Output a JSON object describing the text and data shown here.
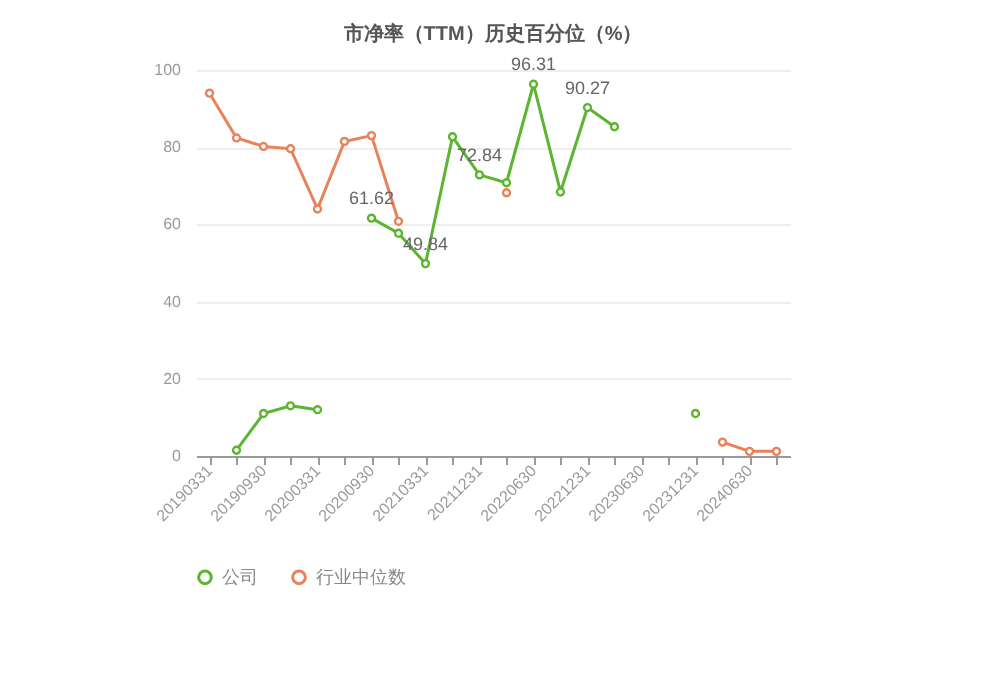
{
  "chart_data": {
    "type": "line",
    "title": "市净率（TTM）历史百分位（%）",
    "categories": [
      "20190331",
      null,
      "20190930",
      null,
      "20200331",
      null,
      "20200930",
      null,
      "20210331",
      null,
      "20211231",
      null,
      "20220630",
      null,
      "20221231",
      null,
      "20230630",
      null,
      "20231231",
      null,
      "20240630",
      null
    ],
    "series": [
      {
        "name": "公司",
        "color": "#5cb531",
        "values": [
          null,
          1.5,
          11,
          13,
          12,
          null,
          61.62,
          57.7,
          49.84,
          82.7,
          72.84,
          70.8,
          96.31,
          68.4,
          90.27,
          85.3,
          null,
          null,
          11,
          null,
          null,
          null
        ],
        "value_labels": [
          null,
          null,
          null,
          null,
          null,
          null,
          "61.62",
          null,
          "49.84",
          null,
          "72.84",
          null,
          "96.31",
          null,
          "90.27",
          null,
          null,
          null,
          null,
          null,
          null,
          null
        ]
      },
      {
        "name": "行业中位数",
        "color": "#e8825a",
        "values": [
          94,
          82.4,
          80.2,
          79.6,
          64,
          81.5,
          83,
          60.8,
          null,
          null,
          null,
          68.2,
          null,
          null,
          null,
          null,
          null,
          null,
          null,
          3.6,
          1.2,
          1.2
        ]
      }
    ],
    "ylim": [
      0,
      100
    ],
    "yticks": [
      0,
      20,
      40,
      60,
      80,
      100
    ],
    "grid": "y",
    "legend": "bottom",
    "marker": "circle"
  }
}
